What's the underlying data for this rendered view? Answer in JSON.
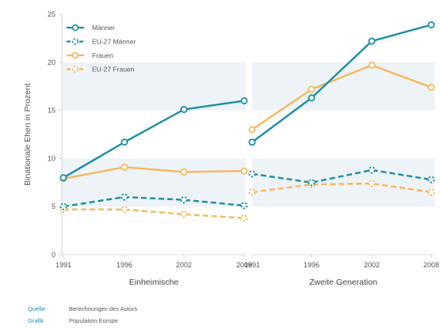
{
  "chart_data": {
    "type": "line",
    "ylabel": "Binationale Ehen in Prozent",
    "ylim": [
      0,
      25
    ],
    "yticks": [
      0,
      5,
      10,
      15,
      20,
      25
    ],
    "x": [
      "1991",
      "1996",
      "2002",
      "2008"
    ],
    "panels": [
      {
        "label": "Einheimische",
        "series": [
          {
            "name": "Männer",
            "values": [
              8.0,
              11.7,
              15.1,
              16.0
            ]
          },
          {
            "name": "EU-27 Männer",
            "values": [
              5.0,
              6.0,
              5.7,
              5.1
            ]
          },
          {
            "name": "Frauen",
            "values": [
              7.9,
              9.1,
              8.6,
              8.7
            ]
          },
          {
            "name": "EU-27 Frauen",
            "values": [
              4.7,
              4.7,
              4.2,
              3.8
            ]
          }
        ]
      },
      {
        "label": "Zweite Generation",
        "series": [
          {
            "name": "Männer",
            "values": [
              11.7,
              16.3,
              22.2,
              23.9
            ]
          },
          {
            "name": "EU-27 Männer",
            "values": [
              8.4,
              7.5,
              8.8,
              7.8
            ]
          },
          {
            "name": "Frauen",
            "values": [
              13.0,
              17.2,
              19.7,
              17.4
            ]
          },
          {
            "name": "EU-27 Frauen",
            "values": [
              6.5,
              7.3,
              7.4,
              6.5
            ]
          }
        ]
      }
    ],
    "legend": {
      "position": "top-left",
      "entries": [
        "Männer",
        "EU-27 Männer",
        "Frauen",
        "EU-27 Frauen"
      ]
    },
    "colors": {
      "men": "#1a8ea4",
      "women": "#f5b85a",
      "band": "#eef3f8"
    },
    "grid": false
  },
  "footer": {
    "source_label": "Quelle",
    "source_text": "Berechnungen des Autors",
    "graphic_label": "Grafik",
    "graphic_text": "Population Europe"
  }
}
